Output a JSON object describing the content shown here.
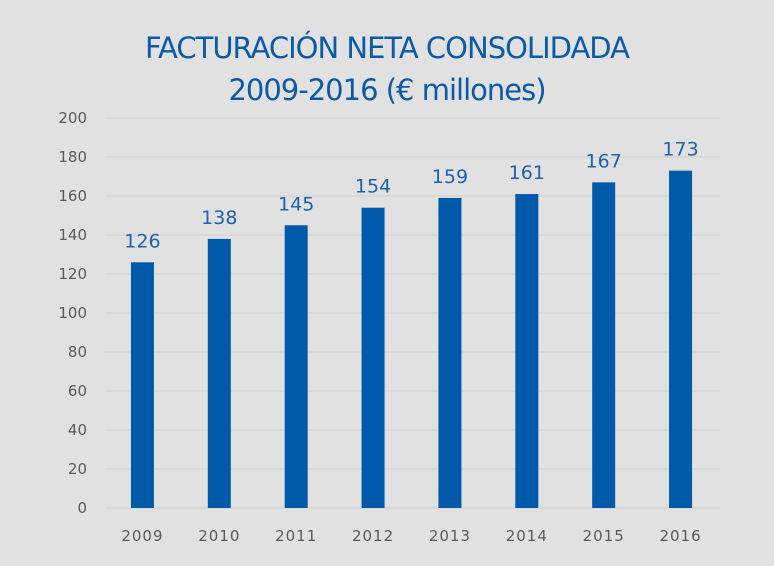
{
  "chart_data": {
    "type": "bar",
    "title": "FACTURACIÓN NETA CONSOLIDADA",
    "subtitle": "2009-2016 (€ millones)",
    "xlabel": "",
    "ylabel": "",
    "categories": [
      "2009",
      "2010",
      "2011",
      "2012",
      "2013",
      "2014",
      "2015",
      "2016"
    ],
    "values": [
      126,
      138,
      145,
      154,
      159,
      161,
      167,
      173
    ],
    "data_labels": [
      "126",
      "138",
      "145",
      "154",
      "159",
      "161",
      "167",
      "173"
    ],
    "ylim": [
      0,
      200
    ],
    "yticks": [
      "0",
      "20",
      "40",
      "60",
      "80",
      "100",
      "120",
      "140",
      "160",
      "180",
      "200"
    ],
    "grid": true,
    "legend": "none",
    "colors": {
      "bar": "#005aa9",
      "label": "#1f62ad",
      "title": "#0b5aa8",
      "background": "#e1e1e1"
    }
  }
}
